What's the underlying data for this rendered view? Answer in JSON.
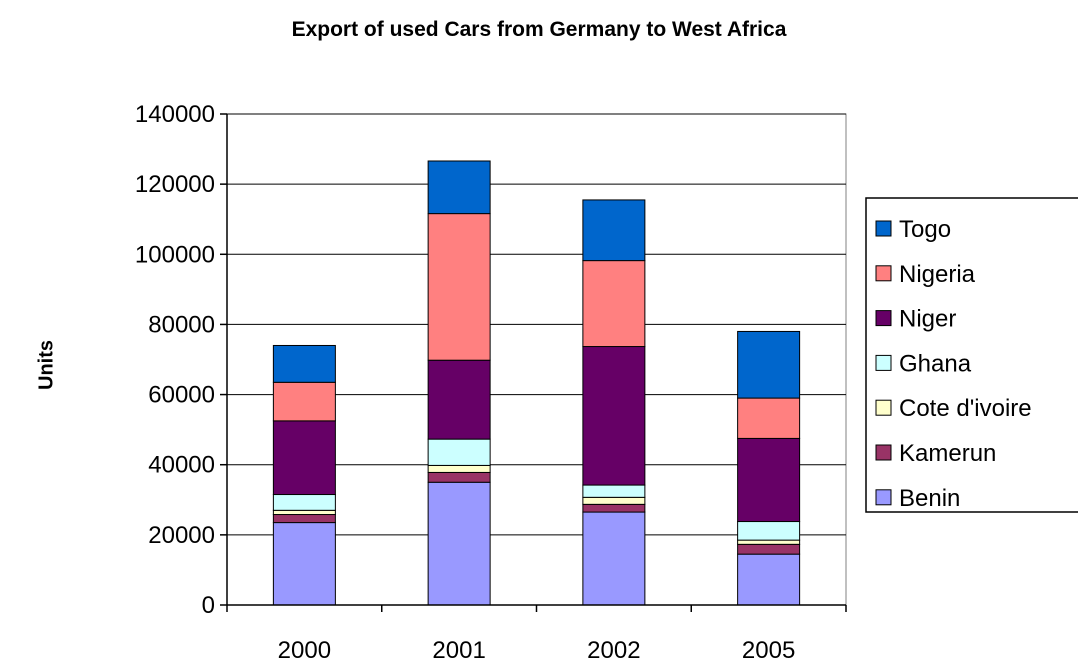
{
  "chart_data": {
    "type": "bar",
    "stacked": true,
    "title": "Export of used Cars from Germany to West Africa",
    "xlabel": "",
    "ylabel": "Units",
    "categories": [
      "2000",
      "2001",
      "2002",
      "2005"
    ],
    "ylim": [
      0,
      140000
    ],
    "yticks": [
      "0",
      "20000",
      "40000",
      "60000",
      "80000",
      "100000",
      "120000",
      "140000"
    ],
    "grid": true,
    "legend_position": "right",
    "series": [
      {
        "name": "Benin",
        "color": "#9999FF",
        "values": [
          23500,
          35000,
          26500,
          14500
        ]
      },
      {
        "name": "Kamerun",
        "color": "#993366",
        "values": [
          2300,
          2800,
          2200,
          2800
        ]
      },
      {
        "name": "Cote d'ivoire",
        "color": "#FFFFCC",
        "values": [
          1200,
          2000,
          2000,
          1200
        ]
      },
      {
        "name": "Ghana",
        "color": "#CCFFFF",
        "values": [
          4500,
          7500,
          3500,
          5300
        ]
      },
      {
        "name": "Niger",
        "color": "#660066",
        "values": [
          21000,
          22500,
          39500,
          23700
        ]
      },
      {
        "name": "Nigeria",
        "color": "#FF8080",
        "values": [
          11000,
          41800,
          24500,
          11500
        ]
      },
      {
        "name": "Togo",
        "color": "#0066CC",
        "values": [
          10500,
          15000,
          17300,
          19000
        ]
      }
    ]
  }
}
